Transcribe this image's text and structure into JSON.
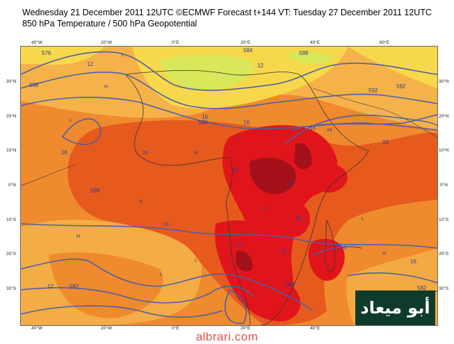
{
  "header": {
    "line1": "Wednesday 21 December 2011 12UTC ©ECMWF Forecast t+144 VT: Tuesday 27 December 2011 12UTC",
    "line2": "850 hPa Temperature / 500 hPa Geopotential"
  },
  "axes": {
    "lon_top": [
      "40°W",
      "20°W",
      "0°E",
      "20°E",
      "40°E",
      "60°E"
    ],
    "lon_bottom": [
      "40°W",
      "20°W",
      "0°E",
      "20°E",
      "40°E",
      "60°E"
    ],
    "lat_left": [
      "30°N",
      "20°N",
      "10°N",
      "0°N",
      "10°S",
      "20°S",
      "30°S"
    ],
    "lat_right": [
      "30°N",
      "20°N",
      "10°N",
      "0°N",
      "10°S",
      "20°S",
      "30°S"
    ]
  },
  "map": {
    "colors": {
      "temp_cool": "#d8e85a",
      "temp_mild": "#f7d84a",
      "temp_warm": "#f5b24a",
      "temp_hot": "#ef8a2e",
      "temp_hotter": "#e65a1e",
      "temp_extreme": "#e0151b",
      "temp_peak": "#a3101a",
      "contour": "#4a5fa8",
      "coast": "#333333"
    },
    "contour_labels": [
      "576",
      "588",
      "12",
      "584",
      "588",
      "16",
      "588",
      "592",
      "16",
      "12",
      "592",
      "16",
      "588",
      "16",
      "16",
      "582",
      "12",
      "588",
      "20",
      "16",
      "582"
    ],
    "isotherm_labels": [
      "20",
      "24",
      "24",
      "24",
      "20",
      "20",
      "24",
      "20"
    ],
    "pressure_markers": [
      "H",
      "L",
      "H",
      "L",
      "H",
      "L",
      "H",
      "L",
      "H",
      "L",
      "H",
      "L"
    ]
  },
  "logo": {
    "text": "أبو ميعاد",
    "bg": "#0f3c2a"
  },
  "watermark": {
    "text": "albrari.com",
    "color": "#e0524a"
  }
}
